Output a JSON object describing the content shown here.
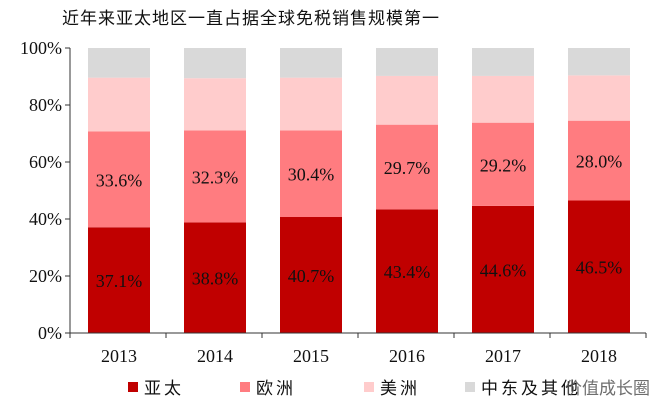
{
  "chart_data": {
    "type": "bar",
    "stacked": true,
    "title": "近年来亚太地区一直占据全球免税销售规模第一",
    "categories": [
      "2013",
      "2014",
      "2015",
      "2016",
      "2017",
      "2018"
    ],
    "series": [
      {
        "name": "亚太",
        "color": "#c00000",
        "values": [
          37.1,
          38.8,
          40.7,
          43.4,
          44.6,
          46.5
        ],
        "labels": [
          "37.1%",
          "38.8%",
          "40.7%",
          "43.4%",
          "44.6%",
          "46.5%"
        ]
      },
      {
        "name": "欧洲",
        "color": "#ff7c80",
        "values": [
          33.6,
          32.3,
          30.4,
          29.7,
          29.2,
          28.0
        ],
        "labels": [
          "33.6%",
          "32.3%",
          "30.4%",
          "29.7%",
          "29.2%",
          "28.0%"
        ]
      },
      {
        "name": "美洲",
        "color": "#ffcccc",
        "values": [
          18.9,
          18.3,
          18.5,
          17.1,
          16.4,
          15.9
        ]
      },
      {
        "name": "中东及其他",
        "color": "#d9d9d9",
        "values": [
          10.4,
          10.6,
          10.4,
          9.8,
          9.8,
          9.6
        ]
      }
    ],
    "ylim": [
      0,
      100
    ],
    "yticks": [
      "0%",
      "20%",
      "40%",
      "60%",
      "80%",
      "100%"
    ],
    "grid": false,
    "legend_position": "bottom"
  },
  "watermark": "价值成长圈"
}
